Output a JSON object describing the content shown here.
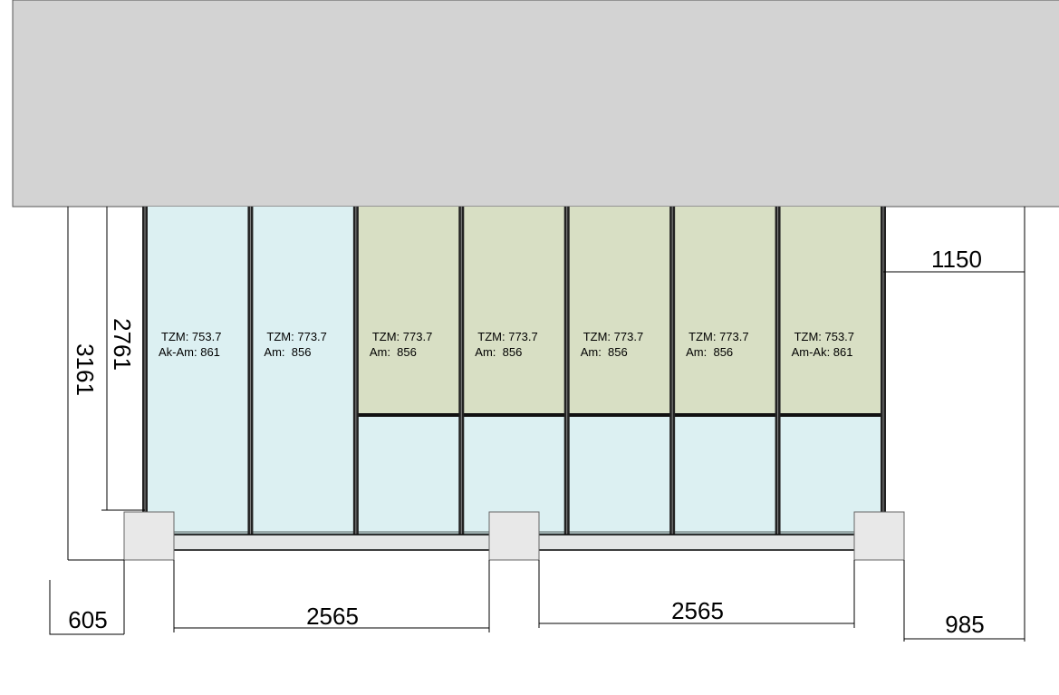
{
  "panels": [
    {
      "line1": "TZM: 753.7",
      "line2": "Ak-Am: 861"
    },
    {
      "line1": "TZM: 773.7",
      "line2": "Am:  856"
    },
    {
      "line1": "TZM: 773.7",
      "line2": "Am:  856"
    },
    {
      "line1": "TZM: 773.7",
      "line2": "Am:  856"
    },
    {
      "line1": "TZM: 773.7",
      "line2": "Am:  856"
    },
    {
      "line1": "TZM: 773.7",
      "line2": "Am:  856"
    },
    {
      "line1": "TZM: 753.7",
      "line2": "Am-Ak: 861"
    }
  ],
  "dimensions": {
    "inner_height": "2761",
    "total_height": "3161",
    "right_overhang": "1150",
    "left_offset": "605",
    "span_left": "2565",
    "span_right": "2565",
    "right_offset": "985"
  }
}
